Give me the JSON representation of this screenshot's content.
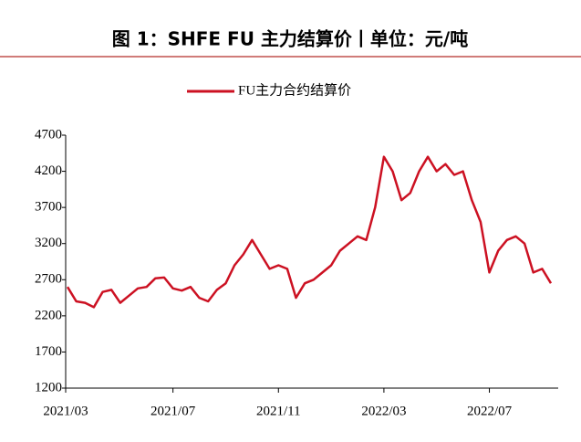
{
  "chart_data": {
    "type": "line",
    "title": "图 1：SHFE FU 主力结算价丨单位：元/吨",
    "categories": [
      "2021/03",
      null,
      null,
      null,
      null,
      null,
      null,
      null,
      null,
      null,
      null,
      null,
      "2021/07",
      null,
      null,
      null,
      null,
      null,
      null,
      null,
      null,
      null,
      null,
      null,
      "2021/11",
      null,
      null,
      null,
      null,
      null,
      null,
      null,
      null,
      null,
      null,
      null,
      "2022/03",
      null,
      null,
      null,
      null,
      null,
      null,
      null,
      null,
      null,
      null,
      null,
      "2022/07",
      null,
      null,
      null,
      null,
      null,
      null,
      null
    ],
    "series": [
      {
        "name": "FU主力合约结算价",
        "color": "#cc1122",
        "values": [
          2600,
          2400,
          2380,
          2320,
          2530,
          2560,
          2380,
          2480,
          2580,
          2600,
          2720,
          2730,
          2580,
          2550,
          2600,
          2450,
          2400,
          2560,
          2650,
          2900,
          3050,
          3250,
          3050,
          2850,
          2900,
          2850,
          2450,
          2650,
          2700,
          2800,
          2900,
          3100,
          3200,
          3300,
          3250,
          3700,
          4400,
          4200,
          3800,
          3900,
          4200,
          4400,
          4200,
          4300,
          4150,
          4200,
          3800,
          3500,
          2800,
          3100,
          3250,
          3300,
          3200,
          2800,
          2850,
          2650
        ]
      }
    ],
    "ylim": [
      1200,
      4700
    ],
    "yticks": [
      1200,
      1700,
      2200,
      2700,
      3200,
      3700,
      4200,
      4700
    ],
    "legend": "top"
  }
}
